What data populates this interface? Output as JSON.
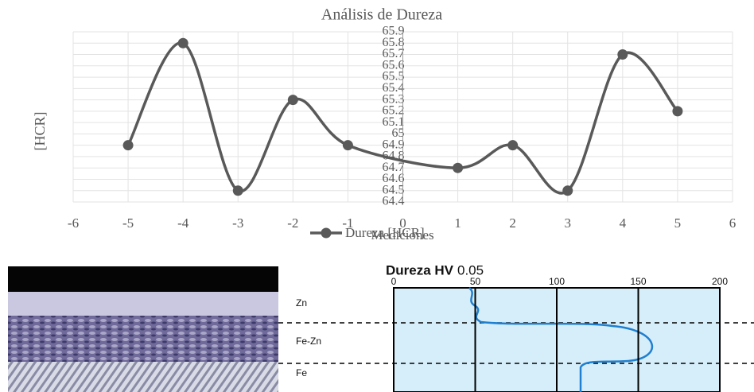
{
  "chart_data": {
    "type": "line",
    "title": "Análisis de Dureza",
    "x_label": "Mediciones",
    "y_label": "[HCR]",
    "x": [
      -5,
      -4,
      -3,
      -2,
      -1,
      1,
      2,
      3,
      4,
      5
    ],
    "series": [
      {
        "name": "Dureza [HCR]",
        "color": "#595959",
        "values": [
          64.9,
          65.8,
          64.5,
          65.3,
          64.9,
          64.7,
          64.9,
          64.5,
          65.7,
          65.2
        ]
      }
    ],
    "smooth": true,
    "grid": true,
    "xlim": [
      -6,
      6
    ],
    "xticks": [
      -6,
      -5,
      -4,
      -3,
      -2,
      -1,
      0,
      1,
      2,
      3,
      4,
      5,
      6
    ],
    "ylim": [
      64.4,
      65.9
    ],
    "yticks": [
      64.4,
      64.5,
      64.6,
      64.7,
      64.8,
      64.9,
      65,
      65.1,
      65.2,
      65.3,
      65.4,
      65.5,
      65.6,
      65.7,
      65.8,
      65.9
    ]
  },
  "figure": {
    "title": "Dureza HV",
    "title_suffix": "0.05",
    "ticks": [
      0,
      50,
      100,
      150,
      200
    ],
    "layers": [
      "Zn",
      "Fe-Zn",
      "Fe"
    ]
  }
}
